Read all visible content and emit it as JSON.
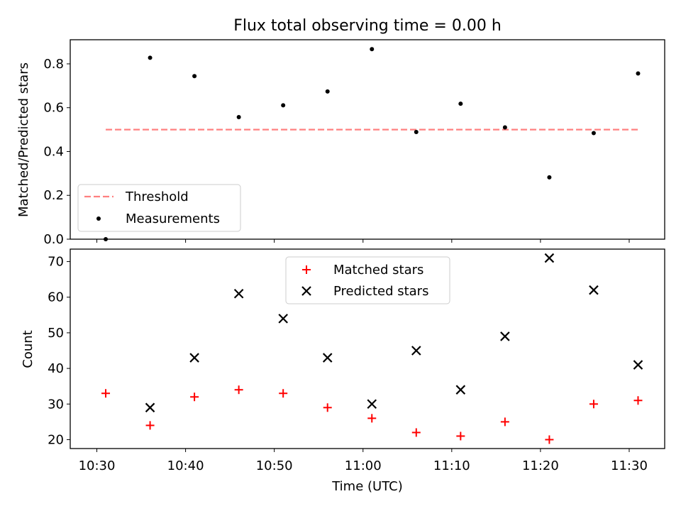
{
  "figure": {
    "title": "Flux total observing time = 0.00 h"
  },
  "chart_data": [
    {
      "type": "scatter",
      "ylabel": "Matched/Predicted stars",
      "ylim": [
        0,
        0.91
      ],
      "yticks": [
        0.0,
        0.2,
        0.4,
        0.6,
        0.8
      ],
      "ytick_labels": [
        "0.0",
        "0.2",
        "0.4",
        "0.6",
        "0.8"
      ],
      "x_unit": "time",
      "xlim": [
        "10:27",
        "11:34"
      ],
      "grid": false,
      "legend": {
        "placement": "lower-left"
      },
      "threshold": {
        "name": "Threshold",
        "value": 0.5,
        "x_from": "10:31",
        "x_to": "11:31",
        "color": "#ff8080",
        "style": "dashed"
      },
      "series": [
        {
          "name": "Measurements",
          "marker": "dot",
          "color": "#000000",
          "x": [
            "10:31",
            "10:36",
            "10:41",
            "10:46",
            "10:51",
            "10:56",
            "11:01",
            "11:06",
            "11:11",
            "11:16",
            "11:21",
            "11:26",
            "11:31"
          ],
          "values": [
            0.0,
            0.828,
            0.744,
            0.557,
            0.611,
            0.674,
            0.867,
            0.489,
            0.618,
            0.51,
            0.282,
            0.484,
            0.756
          ]
        }
      ]
    },
    {
      "type": "scatter",
      "ylabel": "Count",
      "xlabel": "Time (UTC)",
      "ylim": [
        17.5,
        73.5
      ],
      "yticks": [
        20,
        30,
        40,
        50,
        60,
        70
      ],
      "ytick_labels": [
        "20",
        "30",
        "40",
        "50",
        "60",
        "70"
      ],
      "xticks": [
        "10:30",
        "10:40",
        "10:50",
        "11:00",
        "11:10",
        "11:20",
        "11:30"
      ],
      "xlim": [
        "10:27",
        "11:34"
      ],
      "grid": false,
      "legend": {
        "placement": "top-center"
      },
      "series": [
        {
          "name": "Matched stars",
          "marker": "plus",
          "color": "#ff0000",
          "x": [
            "10:31",
            "10:36",
            "10:41",
            "10:46",
            "10:51",
            "10:56",
            "11:01",
            "11:06",
            "11:11",
            "11:16",
            "11:21",
            "11:26",
            "11:31"
          ],
          "values": [
            33,
            24,
            32,
            34,
            33,
            29,
            26,
            22,
            21,
            25,
            20,
            30,
            31
          ]
        },
        {
          "name": "Predicted stars",
          "marker": "x",
          "color": "#000000",
          "x": [
            "10:36",
            "10:41",
            "10:46",
            "10:51",
            "10:56",
            "11:01",
            "11:06",
            "11:11",
            "11:16",
            "11:21",
            "11:26",
            "11:31"
          ],
          "values": [
            29,
            43,
            61,
            54,
            43,
            30,
            45,
            34,
            49,
            71,
            62,
            41
          ]
        }
      ]
    }
  ]
}
